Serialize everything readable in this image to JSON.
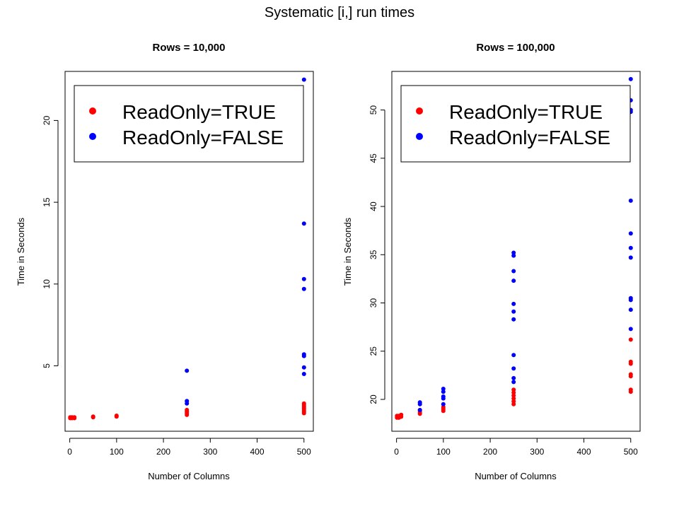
{
  "figure": {
    "title": "Systematic [i,] run times"
  },
  "chart_data": [
    {
      "type": "scatter",
      "title": "Rows = 10,000",
      "xlabel": "Number of Columns",
      "ylabel": "Time in Seconds",
      "xlim": [
        -10,
        520
      ],
      "ylim": [
        1.0,
        23.0
      ],
      "x_ticks": [
        0,
        100,
        200,
        300,
        400,
        500
      ],
      "y_ticks": [
        5,
        10,
        15,
        20
      ],
      "grid": false,
      "legend_position": "top",
      "series": [
        {
          "name": "ReadOnly=TRUE",
          "color": "#ff0000",
          "points": [
            [
              1,
              1.8
            ],
            [
              1,
              1.85
            ],
            [
              5,
              1.8
            ],
            [
              5,
              1.85
            ],
            [
              10,
              1.8
            ],
            [
              10,
              1.85
            ],
            [
              50,
              1.85
            ],
            [
              50,
              1.9
            ],
            [
              100,
              1.9
            ],
            [
              100,
              1.95
            ],
            [
              250,
              2.0
            ],
            [
              250,
              2.1
            ],
            [
              250,
              2.2
            ],
            [
              250,
              2.3
            ],
            [
              500,
              2.1
            ],
            [
              500,
              2.2
            ],
            [
              500,
              2.3
            ],
            [
              500,
              2.4
            ],
            [
              500,
              2.5
            ],
            [
              500,
              2.6
            ],
            [
              500,
              2.7
            ]
          ]
        },
        {
          "name": "ReadOnly=FALSE",
          "color": "#0000ff",
          "points": [
            [
              250,
              2.7
            ],
            [
              250,
              2.85
            ],
            [
              250,
              4.7
            ],
            [
              500,
              4.5
            ],
            [
              500,
              4.9
            ],
            [
              500,
              5.6
            ],
            [
              500,
              5.7
            ],
            [
              500,
              9.7
            ],
            [
              500,
              10.3
            ],
            [
              500,
              13.7
            ],
            [
              500,
              22.5
            ]
          ]
        }
      ]
    },
    {
      "type": "scatter",
      "title": "Rows = 100,000",
      "xlabel": "Number of Columns",
      "ylabel": "Time in Seconds",
      "xlim": [
        -10,
        520
      ],
      "ylim": [
        16.7,
        54.0
      ],
      "x_ticks": [
        0,
        100,
        200,
        300,
        400,
        500
      ],
      "y_ticks": [
        20,
        25,
        30,
        35,
        40,
        45,
        50
      ],
      "grid": false,
      "legend_position": "top",
      "series": [
        {
          "name": "ReadOnly=TRUE",
          "color": "#ff0000",
          "points": [
            [
              1,
              18.1
            ],
            [
              1,
              18.3
            ],
            [
              5,
              18.1
            ],
            [
              5,
              18.3
            ],
            [
              10,
              18.2
            ],
            [
              10,
              18.4
            ],
            [
              50,
              18.5
            ],
            [
              50,
              18.7
            ],
            [
              50,
              18.9
            ],
            [
              100,
              18.8
            ],
            [
              100,
              19.0
            ],
            [
              100,
              19.2
            ],
            [
              250,
              19.5
            ],
            [
              250,
              19.8
            ],
            [
              250,
              20.1
            ],
            [
              250,
              20.4
            ],
            [
              250,
              20.7
            ],
            [
              250,
              21.0
            ],
            [
              500,
              20.8
            ],
            [
              500,
              21.0
            ],
            [
              500,
              22.4
            ],
            [
              500,
              22.6
            ],
            [
              500,
              23.7
            ],
            [
              500,
              23.9
            ],
            [
              500,
              26.2
            ]
          ]
        },
        {
          "name": "ReadOnly=FALSE",
          "color": "#0000ff",
          "points": [
            [
              50,
              18.9
            ],
            [
              50,
              19.5
            ],
            [
              50,
              19.7
            ],
            [
              100,
              19.5
            ],
            [
              100,
              20.1
            ],
            [
              100,
              20.3
            ],
            [
              100,
              20.8
            ],
            [
              100,
              21.1
            ],
            [
              250,
              21.8
            ],
            [
              250,
              22.2
            ],
            [
              250,
              23.2
            ],
            [
              250,
              24.6
            ],
            [
              250,
              28.3
            ],
            [
              250,
              29.1
            ],
            [
              250,
              29.9
            ],
            [
              250,
              32.3
            ],
            [
              250,
              33.3
            ],
            [
              250,
              34.9
            ],
            [
              250,
              35.2
            ],
            [
              500,
              27.3
            ],
            [
              500,
              29.3
            ],
            [
              500,
              30.3
            ],
            [
              500,
              30.5
            ],
            [
              500,
              34.7
            ],
            [
              500,
              35.7
            ],
            [
              500,
              37.2
            ],
            [
              500,
              40.6
            ],
            [
              500,
              49.8
            ],
            [
              500,
              50.0
            ],
            [
              500,
              51.0
            ],
            [
              500,
              53.2
            ]
          ]
        }
      ]
    }
  ]
}
